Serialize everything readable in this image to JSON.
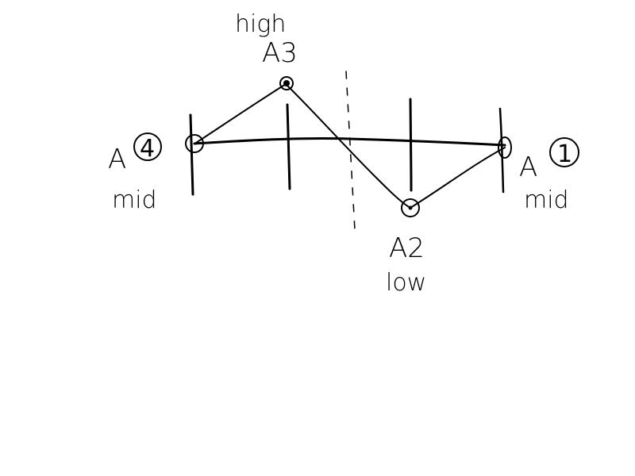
{
  "diagram": {
    "ink_color": "#000000",
    "background": "#ffffff",
    "nodes": {
      "a4": {
        "id": "A",
        "num": "4",
        "level": "mid"
      },
      "a3": {
        "id": "A3",
        "level": "high"
      },
      "a2": {
        "id": "A2",
        "level": "low"
      },
      "a1": {
        "id": "A",
        "num": "1",
        "level": "mid"
      }
    },
    "labels": {
      "a4_letter": "A",
      "a4_circled_num": "4",
      "a4_level": "mid",
      "a3_name": "A3",
      "a3_level": "high",
      "a2_name": "A2",
      "a2_level": "low",
      "a1_letter": "A",
      "a1_circled_num": "1",
      "a1_level": "mid"
    }
  }
}
